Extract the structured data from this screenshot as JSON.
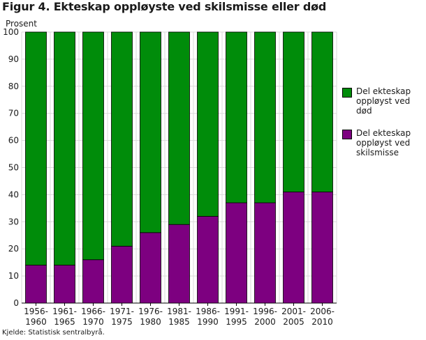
{
  "chart_data": {
    "type": "bar",
    "stacked": true,
    "title": "Figur 4. Ekteskap oppløyste ved skilsmisse eller død",
    "ylabel": "Prosent",
    "xlabel": "",
    "ylim": [
      0,
      100
    ],
    "yticks": [
      0,
      10,
      20,
      30,
      40,
      50,
      60,
      70,
      80,
      90,
      100
    ],
    "grid": true,
    "categories": [
      [
        "1956-",
        "1960"
      ],
      [
        "1961-",
        "1965"
      ],
      [
        "1966-",
        "1970"
      ],
      [
        "1971-",
        "1975"
      ],
      [
        "1976-",
        "1980"
      ],
      [
        "1981-",
        "1985"
      ],
      [
        "1986-",
        "1990"
      ],
      [
        "1991-",
        "1995"
      ],
      [
        "1996-",
        "2000"
      ],
      [
        "2001-",
        "2005"
      ],
      [
        "2006-",
        "2010"
      ]
    ],
    "series": [
      {
        "name": "Del ekteskap oppløyst ved skilsmisse",
        "color": "#7d0080",
        "values": [
          14,
          14,
          16,
          21,
          26,
          29,
          32,
          37,
          37,
          41,
          41
        ]
      },
      {
        "name": "Del ekteskap oppløyst ved død",
        "color": "#008c0a",
        "values": [
          86,
          86,
          84,
          79,
          74,
          71,
          68,
          63,
          63,
          59,
          59
        ]
      }
    ],
    "legend": {
      "position": "right",
      "entries": [
        {
          "lines": [
            "Del ekteskap",
            "oppløyst ved",
            "død"
          ],
          "color": "#008c0a"
        },
        {
          "lines": [
            "Del ekteskap",
            "oppløyst ved",
            "skilsmisse"
          ],
          "color": "#7d0080"
        }
      ]
    }
  },
  "source": "Kjelde: Statistisk sentralbyrå."
}
